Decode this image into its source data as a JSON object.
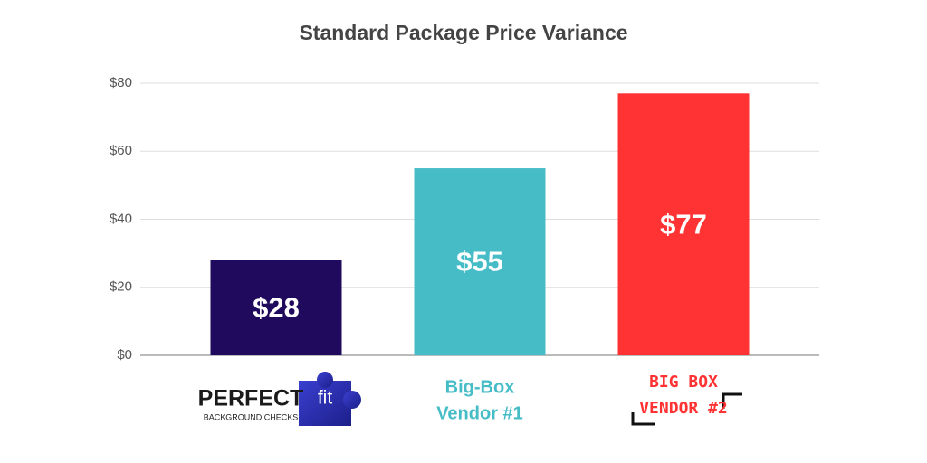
{
  "chart_data": {
    "type": "bar",
    "title": "Standard Package Price Variance",
    "categories": [
      [
        "PERFECT",
        "fit",
        "BACKGROUND CHECKS"
      ],
      [
        "Big-Box",
        "Vendor #1"
      ],
      [
        "BIG BOX",
        "VENDOR #2"
      ]
    ],
    "values": [
      28,
      55,
      77
    ],
    "value_labels": [
      "$28",
      "$55",
      "$77"
    ],
    "colors": [
      "#1f0a5e",
      "#45bcc6",
      "#ff3333"
    ],
    "ylim": [
      0,
      80
    ],
    "yticks": [
      {
        "value": 0,
        "label": "$0"
      },
      {
        "value": 20,
        "label": "$20"
      },
      {
        "value": 40,
        "label": "$40"
      },
      {
        "value": 60,
        "label": "$60"
      },
      {
        "value": 80,
        "label": "$80"
      }
    ],
    "grid": true
  }
}
